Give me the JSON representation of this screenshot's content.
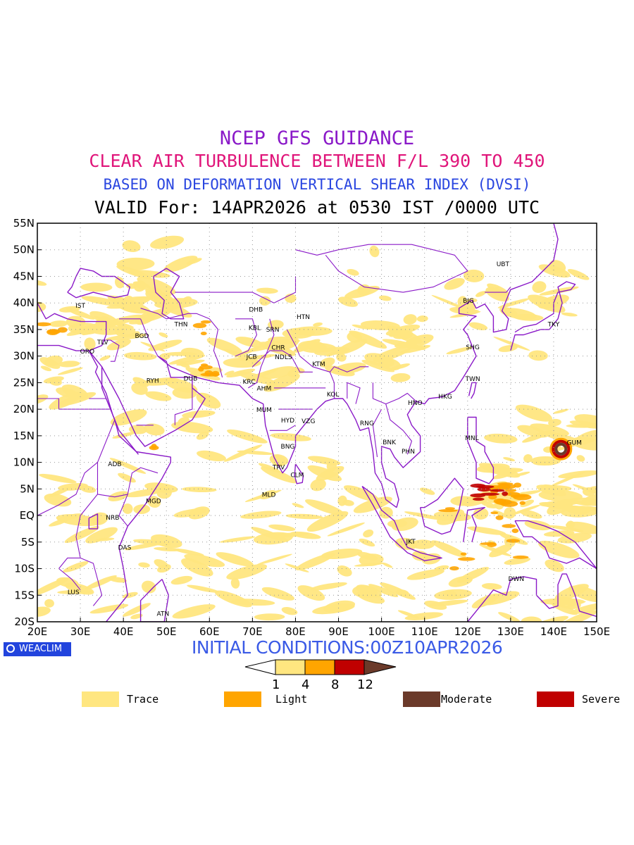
{
  "titles": {
    "line1": "NCEP GFS GUIDANCE",
    "line2": "CLEAR AIR TURBULENCE BETWEEN F/L 390 TO 450",
    "line3": "BASED ON DEFORMATION VERTICAL SHEAR INDEX (DVSI)",
    "line4": "VALID For: 14APR2026 at 0530 IST /0000 UTC"
  },
  "axes": {
    "lon_labels": [
      "20E",
      "30E",
      "40E",
      "50E",
      "60E",
      "70E",
      "80E",
      "90E",
      "100E",
      "110E",
      "120E",
      "130E",
      "140E",
      "150E"
    ],
    "lat_labels": [
      "55N",
      "50N",
      "45N",
      "40N",
      "35N",
      "30N",
      "25N",
      "20N",
      "15N",
      "10N",
      "5N",
      "EQ",
      "5S",
      "10S",
      "15S",
      "20S"
    ],
    "lon_range": [
      20,
      150
    ],
    "lat_range": [
      -20,
      55
    ]
  },
  "stations": [
    {
      "code": "UBT",
      "lon": 128.2,
      "lat": 46.9
    },
    {
      "code": "IST",
      "lon": 30.0,
      "lat": 39.1
    },
    {
      "code": "BJG",
      "lon": 120.2,
      "lat": 40.0
    },
    {
      "code": "DHB",
      "lon": 70.8,
      "lat": 38.4
    },
    {
      "code": "HTN",
      "lon": 81.8,
      "lat": 37.0
    },
    {
      "code": "THN",
      "lon": 53.4,
      "lat": 35.6
    },
    {
      "code": "KBL",
      "lon": 70.5,
      "lat": 34.9
    },
    {
      "code": "SRN",
      "lon": 74.7,
      "lat": 34.6
    },
    {
      "code": "TKY",
      "lon": 140.0,
      "lat": 35.6
    },
    {
      "code": "TLV",
      "lon": 35.2,
      "lat": 32.2
    },
    {
      "code": "BGD",
      "lon": 44.3,
      "lat": 33.4
    },
    {
      "code": "ORO",
      "lon": 31.6,
      "lat": 30.5
    },
    {
      "code": "SHG",
      "lon": 121.2,
      "lat": 31.3
    },
    {
      "code": "CHR",
      "lon": 76.0,
      "lat": 31.2
    },
    {
      "code": "JCB",
      "lon": 69.8,
      "lat": 29.5
    },
    {
      "code": "NDLS",
      "lon": 77.2,
      "lat": 29.4
    },
    {
      "code": "KTM",
      "lon": 85.4,
      "lat": 28.1
    },
    {
      "code": "RYH",
      "lon": 46.8,
      "lat": 25.0
    },
    {
      "code": "DUB",
      "lon": 55.6,
      "lat": 25.4
    },
    {
      "code": "TWN",
      "lon": 121.2,
      "lat": 25.3
    },
    {
      "code": "KRC",
      "lon": 69.2,
      "lat": 24.8
    },
    {
      "code": "AHM",
      "lon": 72.7,
      "lat": 23.5
    },
    {
      "code": "KOL",
      "lon": 88.7,
      "lat": 22.4
    },
    {
      "code": "HKG",
      "lon": 114.8,
      "lat": 22.0
    },
    {
      "code": "HNO",
      "lon": 107.8,
      "lat": 20.8
    },
    {
      "code": "MUM",
      "lon": 72.7,
      "lat": 19.5
    },
    {
      "code": "HYD",
      "lon": 78.2,
      "lat": 17.5
    },
    {
      "code": "VZG",
      "lon": 83.0,
      "lat": 17.4
    },
    {
      "code": "RNG",
      "lon": 96.6,
      "lat": 17.0
    },
    {
      "code": "MNL",
      "lon": 121.0,
      "lat": 14.2
    },
    {
      "code": "GUM",
      "lon": 144.8,
      "lat": 13.3
    },
    {
      "code": "BNK",
      "lon": 101.8,
      "lat": 13.4
    },
    {
      "code": "BNG",
      "lon": 78.2,
      "lat": 12.6
    },
    {
      "code": "PHN",
      "lon": 106.2,
      "lat": 11.7
    },
    {
      "code": "ADB",
      "lon": 38.0,
      "lat": 9.3
    },
    {
      "code": "TRV",
      "lon": 76.1,
      "lat": 8.7
    },
    {
      "code": "CLM",
      "lon": 80.4,
      "lat": 7.2
    },
    {
      "code": "MLD",
      "lon": 73.8,
      "lat": 3.5
    },
    {
      "code": "MGD",
      "lon": 47.0,
      "lat": 2.3
    },
    {
      "code": "NRB",
      "lon": 37.5,
      "lat": -0.8
    },
    {
      "code": "JKT",
      "lon": 106.8,
      "lat": -5.3
    },
    {
      "code": "DAS",
      "lon": 40.3,
      "lat": -6.4
    },
    {
      "code": "DWN",
      "lon": 131.3,
      "lat": -12.3
    },
    {
      "code": "LUS",
      "lon": 28.4,
      "lat": -14.8
    },
    {
      "code": "ATN",
      "lon": 49.2,
      "lat": -18.9
    }
  ],
  "footer": {
    "logo": "WEACLIM",
    "initial_conditions": "INITIAL CONDITIONS:00Z10APR2026"
  },
  "colorbar": {
    "ticks": [
      "1",
      "4",
      "8",
      "12"
    ],
    "colors": [
      "#ffe680",
      "#ffa500",
      "#c00000",
      "#6b3a2a"
    ]
  },
  "legend": [
    {
      "label": "Trace",
      "color": "#ffe680"
    },
    {
      "label": "Light",
      "color": "#ffa500"
    },
    {
      "label": "Moderate",
      "color": "#6b3a2a"
    },
    {
      "label": "Severe",
      "color": "#c00000"
    }
  ],
  "colors": {
    "border": "#8a19c8",
    "trace": "#ffe680",
    "light": "#ffa500",
    "severe": "#c00000",
    "moderate": "#6b3a2a"
  }
}
